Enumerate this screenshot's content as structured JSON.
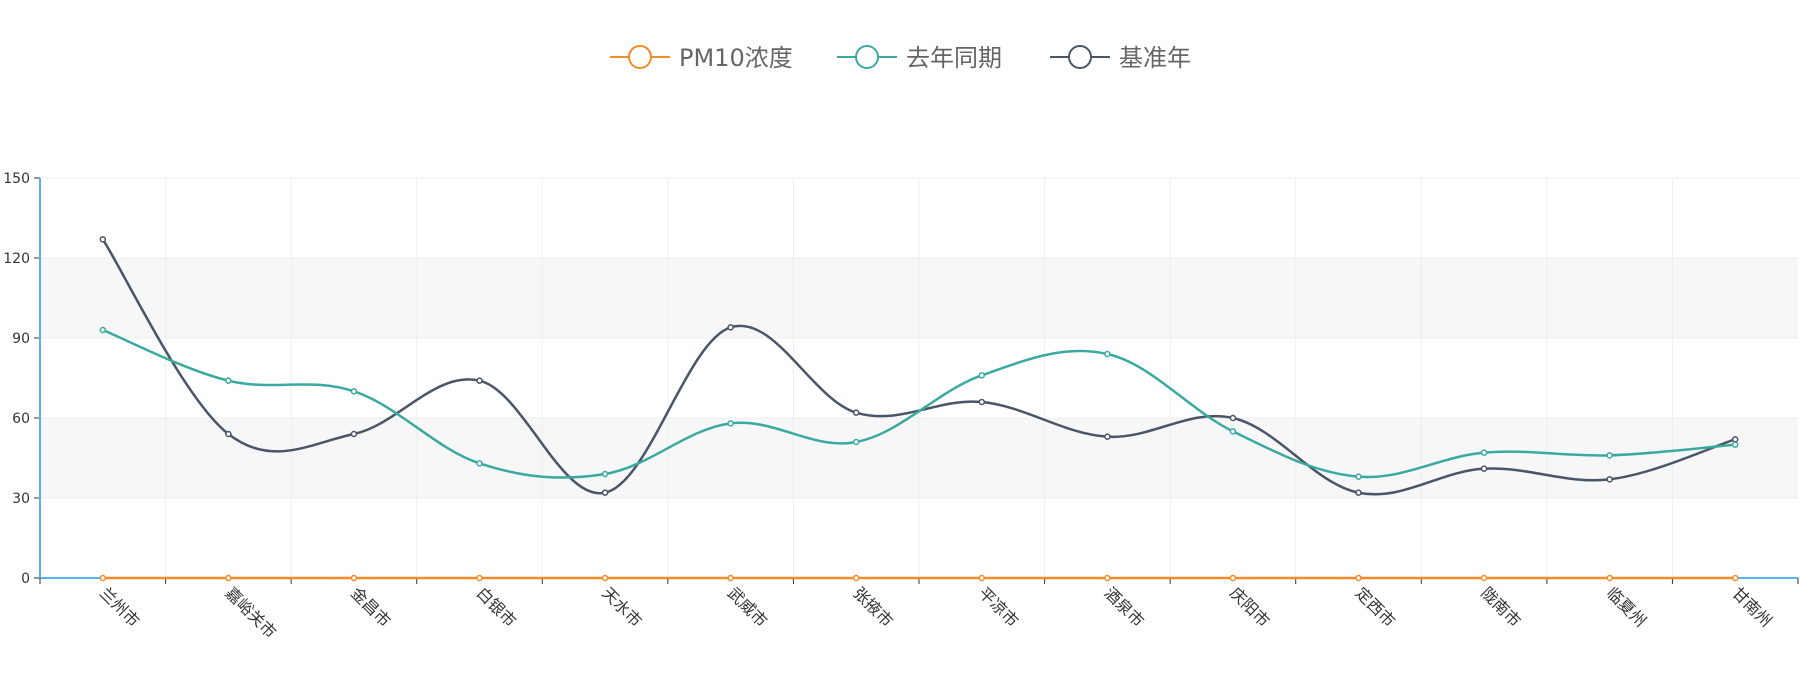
{
  "chart_data": {
    "type": "line",
    "categories": [
      "兰州市",
      "嘉峪关市",
      "金昌市",
      "白银市",
      "天水市",
      "武威市",
      "张掖市",
      "平凉市",
      "酒泉市",
      "庆阳市",
      "定西市",
      "陇南市",
      "临夏州",
      "甘南州"
    ],
    "series": [
      {
        "name": "PM10浓度",
        "color": "#f28c28",
        "values": [
          0,
          0,
          0,
          0,
          0,
          0,
          0,
          0,
          0,
          0,
          0,
          0,
          0,
          0
        ]
      },
      {
        "name": "去年同期",
        "color": "#3aaaa0",
        "values": [
          93,
          74,
          70,
          43,
          39,
          58,
          51,
          76,
          84,
          55,
          38,
          47,
          46,
          50
        ]
      },
      {
        "name": "基准年",
        "color": "#4a5568",
        "values": [
          127,
          54,
          54,
          74,
          32,
          94,
          62,
          66,
          53,
          60,
          32,
          41,
          37,
          52
        ]
      }
    ],
    "yticks": [
      "0",
      "30",
      "60",
      "90",
      "120",
      "150"
    ],
    "ylim": [
      0,
      150
    ],
    "grid": true,
    "legend_position": "top-center",
    "axis_color": "#5ab1ef"
  }
}
